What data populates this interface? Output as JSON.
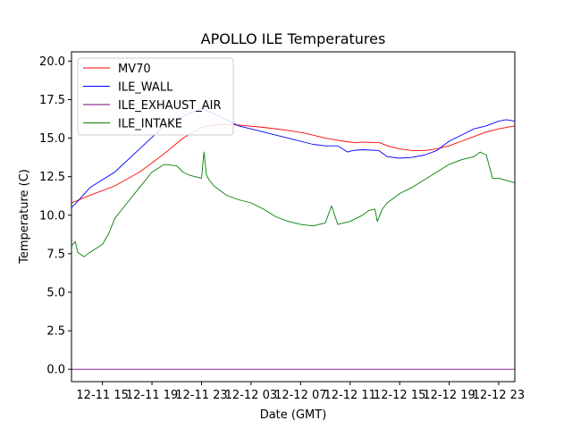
{
  "chart_data": {
    "type": "line",
    "title": "APOLLO ILE Temperatures",
    "xlabel": "Date (GMT)",
    "ylabel": "Temperature (C)",
    "xlim": [
      12.5,
      48.3
    ],
    "ylim": [
      -0.8,
      20.6
    ],
    "grid": false,
    "legend_position": "top-left",
    "x_tick_values": [
      15,
      19,
      23,
      27,
      31,
      35,
      39,
      43,
      47
    ],
    "x_tick_labels": [
      "12-11 15",
      "12-11 19",
      "12-11 23",
      "12-12 03",
      "12-12 07",
      "12-12 11",
      "12-12 15",
      "12-12 19",
      "12-12 23"
    ],
    "y_ticks": [
      0.0,
      2.5,
      5.0,
      7.5,
      10.0,
      12.5,
      15.0,
      17.5,
      20.0
    ],
    "y_tick_labels": [
      "0.0",
      "2.5",
      "5.0",
      "7.5",
      "10.0",
      "12.5",
      "15.0",
      "17.5",
      "20.0"
    ],
    "x_unit": "hours since 12-11 00:00 GMT",
    "series": [
      {
        "name": "MV70",
        "color": "#ff0000",
        "x": [
          12.5,
          14,
          16,
          18,
          20,
          21.5,
          23,
          24.5,
          26,
          28,
          30,
          31.5,
          33,
          34.5,
          35.4,
          36,
          37.4,
          38,
          39,
          40,
          41,
          42,
          43,
          44,
          45,
          46,
          47,
          48.3
        ],
        "y": [
          10.8,
          11.3,
          11.9,
          12.8,
          14.0,
          15.0,
          15.7,
          15.9,
          15.85,
          15.7,
          15.5,
          15.3,
          15.0,
          14.8,
          14.7,
          14.75,
          14.7,
          14.5,
          14.3,
          14.2,
          14.2,
          14.3,
          14.5,
          14.8,
          15.1,
          15.4,
          15.6,
          15.8
        ]
      },
      {
        "name": "ILE_WALL",
        "color": "#0000ff",
        "x": [
          12.5,
          13,
          14,
          16,
          18,
          20,
          22,
          23,
          24,
          25,
          26,
          28,
          30,
          32,
          33,
          34,
          34.8,
          35.2,
          36,
          37.3,
          38,
          39,
          40,
          41,
          42,
          43,
          44,
          45,
          46,
          47,
          47.6,
          48.3
        ],
        "y": [
          10.5,
          10.9,
          11.8,
          12.8,
          14.3,
          15.8,
          16.6,
          16.9,
          16.6,
          16.2,
          15.8,
          15.4,
          15.0,
          14.6,
          14.5,
          14.5,
          14.1,
          14.2,
          14.25,
          14.2,
          13.8,
          13.7,
          13.75,
          13.9,
          14.2,
          14.8,
          15.2,
          15.6,
          15.8,
          16.1,
          16.2,
          16.1
        ]
      },
      {
        "name": "ILE_EXHAUST_AIR",
        "color": "#800080",
        "x": [
          12.5,
          48.3
        ],
        "y": [
          0.0,
          0.0
        ]
      },
      {
        "name": "ILE_INTAKE",
        "color": "#008000",
        "x": [
          12.5,
          12.8,
          13,
          13.5,
          14,
          15,
          15.5,
          16,
          16.5,
          17,
          18,
          19,
          20,
          21,
          21.5,
          22,
          23,
          23.2,
          23.4,
          23.6,
          24,
          25,
          26,
          27,
          28,
          29,
          30,
          31,
          32,
          33,
          33.5,
          34,
          34.5,
          35,
          35.5,
          36,
          36.5,
          37,
          37.2,
          37.6,
          38,
          39,
          40,
          41,
          42,
          43,
          44,
          45,
          45.5,
          46,
          46.5,
          47,
          48.3
        ],
        "y": [
          8.0,
          8.3,
          7.6,
          7.3,
          7.6,
          8.1,
          8.8,
          9.8,
          10.3,
          10.8,
          11.8,
          12.8,
          13.3,
          13.2,
          12.8,
          12.6,
          12.4,
          14.1,
          12.6,
          12.3,
          11.9,
          11.3,
          11.0,
          10.8,
          10.4,
          9.9,
          9.6,
          9.4,
          9.3,
          9.5,
          10.6,
          9.4,
          9.5,
          9.6,
          9.8,
          10.0,
          10.3,
          10.4,
          9.6,
          10.4,
          10.8,
          11.4,
          11.8,
          12.3,
          12.8,
          13.3,
          13.6,
          13.8,
          14.1,
          13.9,
          12.4,
          12.4,
          12.1
        ]
      }
    ]
  }
}
